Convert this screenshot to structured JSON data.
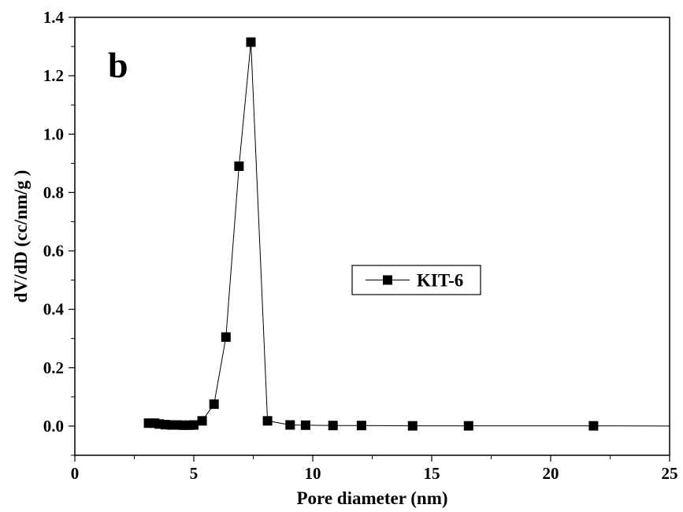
{
  "chart_data": {
    "type": "line",
    "panel_label": "b",
    "xlabel": "Pore diameter (nm)",
    "ylabel": "dV/dD (cc/nm/g )",
    "xlim": [
      0,
      25
    ],
    "ylim": [
      -0.1,
      1.4
    ],
    "x_ticks": [
      0,
      5,
      10,
      15,
      20,
      25
    ],
    "y_ticks": [
      0.0,
      0.2,
      0.4,
      0.6,
      0.8,
      1.0,
      1.2,
      1.4
    ],
    "x_tick_labels": [
      "0",
      "5",
      "10",
      "15",
      "20",
      "25"
    ],
    "y_tick_labels": [
      "0.0",
      "0.2",
      "0.4",
      "0.6",
      "0.8",
      "1.0",
      "1.2",
      "1.4"
    ],
    "grid": false,
    "legend_position": "center-right",
    "series": [
      {
        "name": "KIT-6",
        "color": "#000000",
        "marker": "square",
        "x": [
          3.1,
          3.35,
          3.55,
          3.8,
          4.05,
          4.3,
          4.55,
          4.8,
          5.0,
          5.35,
          5.85,
          6.35,
          6.9,
          7.4,
          8.1,
          9.05,
          9.7,
          10.85,
          12.05,
          14.2,
          16.55,
          21.8,
          25.0
        ],
        "y": [
          0.01,
          0.01,
          0.007,
          0.005,
          0.004,
          0.004,
          0.003,
          0.003,
          0.004,
          0.018,
          0.075,
          0.305,
          0.89,
          1.315,
          0.018,
          0.004,
          0.003,
          0.002,
          0.002,
          0.001,
          0.001,
          0.001,
          0.0
        ],
        "markers_shown": 22
      }
    ]
  }
}
